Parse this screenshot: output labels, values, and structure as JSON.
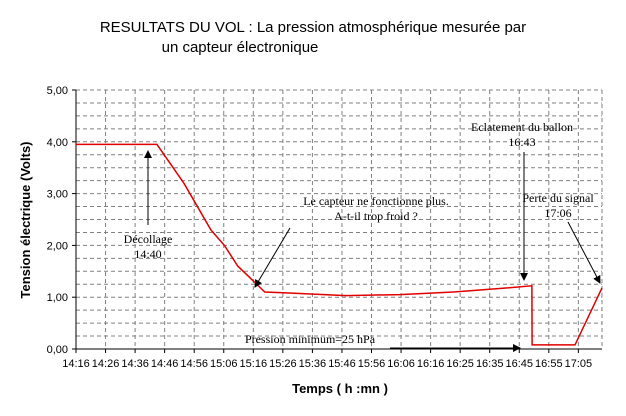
{
  "chart_data": {
    "type": "line",
    "title_lines": [
      "RESULTATS DU VOL : La pression atmosphérique mesurée par",
      "un capteur électronique"
    ],
    "xlabel": "Temps ( h :mn )",
    "ylabel": "Tension électrique (Volts)",
    "x_tick_labels": [
      "14:16",
      "14:26",
      "14:36",
      "14:46",
      "14:56",
      "15:06",
      "15:16",
      "15:26",
      "15:36",
      "15:46",
      "15:56",
      "16:06",
      "16:16",
      "16:25",
      "16:35",
      "16:45",
      "16:55",
      "17:05"
    ],
    "y_tick_labels": [
      "0,00",
      "1,00",
      "2,00",
      "3,00",
      "4,00",
      "5,00"
    ],
    "ylim": [
      0,
      5
    ],
    "xlim_minutes_from_first_tick": [
      0,
      169
    ],
    "grid": true,
    "line_color": "#e00000",
    "series": [
      {
        "x_minutes_from_first_tick": [
          0,
          12,
          20,
          25,
          30,
          40,
          50,
          55,
          60,
          70,
          80,
          100,
          120,
          140,
          160,
          169,
          169.1,
          172,
          180,
          185,
          195
        ],
        "values": [
          3.95,
          3.95,
          3.95,
          3.95,
          3.95,
          3.2,
          2.3,
          2.0,
          1.6,
          1.1,
          1.08,
          1.03,
          1.05,
          1.1,
          1.18,
          1.22,
          0.08,
          0.08,
          0.08,
          0.08,
          1.18
        ]
      }
    ],
    "annotations": [
      {
        "lines": [
          "Décollage",
          "14:40"
        ],
        "x": 25,
        "y": 1.9,
        "arrow_to": [
          25,
          3.9
        ]
      },
      {
        "lines": [
          "Le capteur ne fonctionne plus.",
          "A-t-il trop froid ?"
        ],
        "x": 75,
        "y": 2.6,
        "arrow_to": [
          70,
          1.12
        ]
      },
      {
        "lines": [
          "Eclatement du ballon",
          "16:43"
        ],
        "x": 168,
        "y": 4.2,
        "arrow_to": [
          168,
          1.3
        ]
      },
      {
        "lines": [
          "Perte du signal",
          "17:06"
        ],
        "x": 188,
        "y": 3.0,
        "arrow_to": [
          195,
          1.2
        ]
      },
      {
        "lines": [
          "Pression minimum=25 hPa"
        ],
        "x": 118,
        "y": 0.2,
        "arrow_to": [
          168,
          0.08
        ]
      }
    ]
  }
}
